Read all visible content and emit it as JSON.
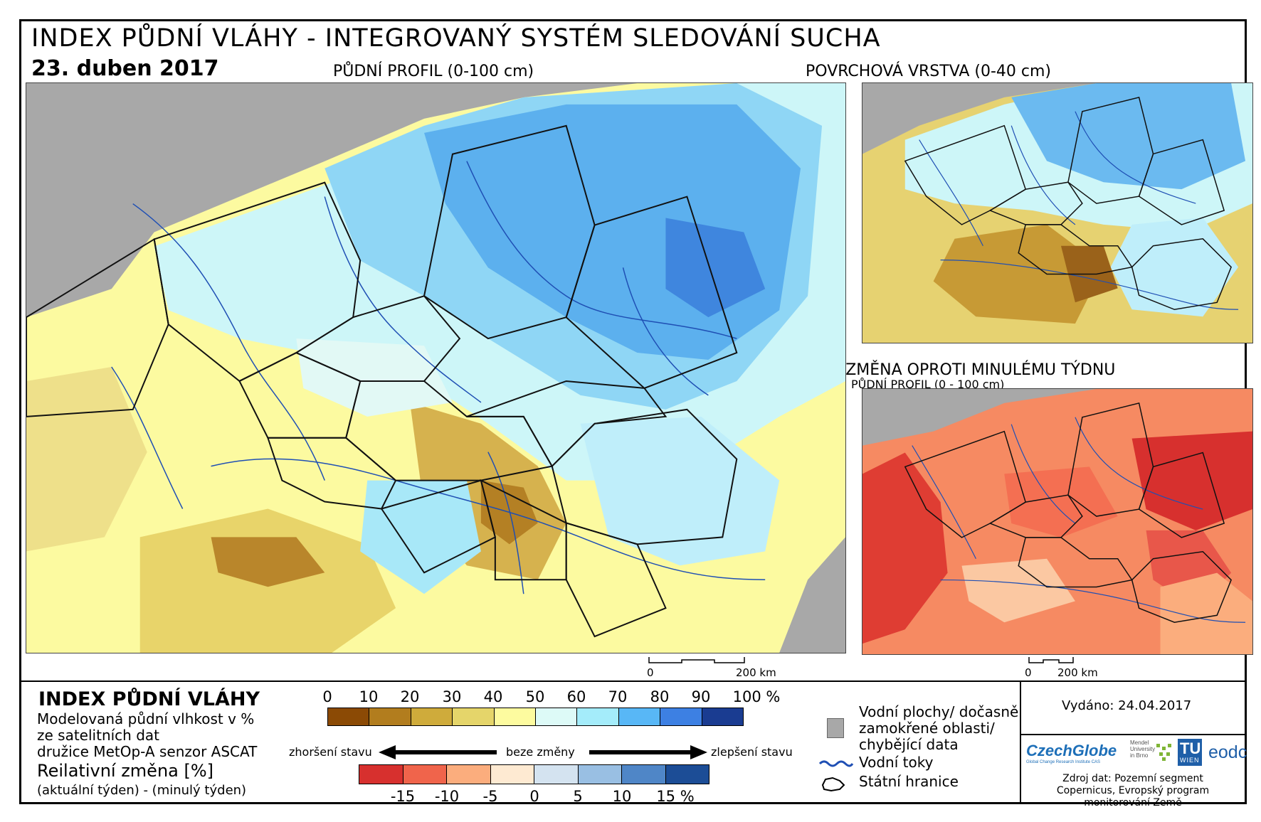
{
  "header": {
    "title": "INDEX PŮDNÍ VLÁHY - INTEGROVANÝ SYSTÉM SLEDOVÁNÍ SUCHA",
    "date": "23. duben 2017"
  },
  "maps": {
    "main_label": "PŮDNÍ PROFIL (0-100 cm)",
    "surface_label": "POVRCHOVÁ VRSTVA (0-40 cm)",
    "change_label": "RELATIVNÍ ZMĚNA OPROTI MINULÉMU TÝDNU",
    "change_sublabel": "PŮDNÍ PROFIL (0 - 100 cm)"
  },
  "scalebars": {
    "main": {
      "zero": "0",
      "end": "200 km"
    },
    "small": {
      "zero": "0",
      "end": "200 km"
    }
  },
  "legend": {
    "title": "INDEX PŮDNÍ VLÁHY",
    "desc_lines": [
      "Modelovaná půdní vlhkost v %",
      "ze satelitních dat",
      "družice MetOp-A senzor ASCAT"
    ],
    "change_title": "Reilativní změna [%]",
    "change_desc": "(aktuální týden) - (minulý týden)",
    "moisture_ticks": [
      "0",
      "10",
      "20",
      "30",
      "40",
      "50",
      "60",
      "70",
      "80",
      "90",
      "100 %"
    ],
    "moisture_colors": [
      "#8b4a05",
      "#b27d1e",
      "#cfab3b",
      "#e5d56a",
      "#fdfb9f",
      "#ddfaf7",
      "#a4ecfa",
      "#58b7f6",
      "#3d80e3",
      "#1a3c91"
    ],
    "worse_label": "zhoršení stavu",
    "nochange_label": "beze změny",
    "better_label": "zlepšení stavu",
    "change_ticks": [
      "-15",
      "-10",
      "-5",
      "0",
      "5",
      "10",
      "15 %"
    ],
    "change_colors": [
      "#d7302e",
      "#f0644b",
      "#fbad7d",
      "#feead2",
      "#d4e3f0",
      "#99bfe3",
      "#4f86c7",
      "#1c4d96"
    ],
    "water_label_lines": [
      "Vodní plochy/ dočasně",
      "zamokřené oblasti/",
      "chybějící data"
    ],
    "rivers_label": "Vodní toky",
    "borders_label": "Státní hranice"
  },
  "info": {
    "issued": "Vydáno: 24.04.2017",
    "source_lines": [
      "Zdroj dat: Pozemní segment",
      "Copernicus, Evropský program",
      "monitorování Země"
    ],
    "logos": {
      "czechglobe": "CzechGlobe",
      "czechglobe_sub": "Global Change Research Institute CAS",
      "mendel_lines": [
        "Mendel",
        "University",
        "in Brno"
      ],
      "tu": "TU",
      "wien": "WIEN",
      "eodc": "eodc"
    }
  }
}
